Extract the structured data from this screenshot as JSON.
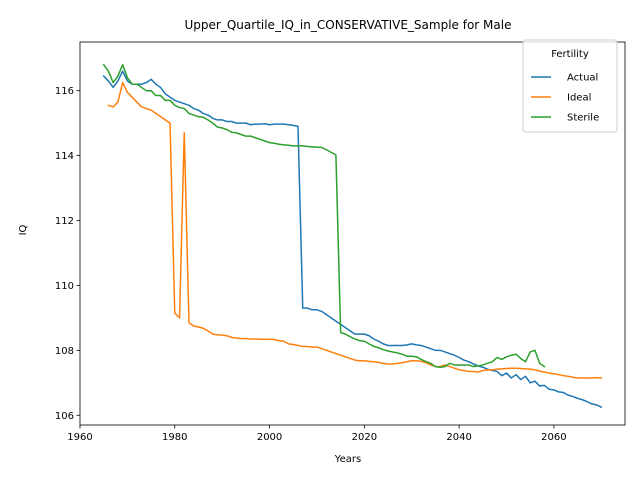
{
  "chart_data": {
    "type": "line",
    "title": "Upper_Quartile_IQ_in_CONSERVATIVE_Sample for Male",
    "xlabel": "Years",
    "ylabel": "IQ",
    "xlim": [
      1960,
      2075
    ],
    "ylim": [
      105.7,
      117.5
    ],
    "xticks": [
      1960,
      1980,
      2000,
      2020,
      2040,
      2060
    ],
    "yticks": [
      106,
      108,
      110,
      112,
      114,
      116
    ],
    "grid": false,
    "legend": {
      "title": "Fertility",
      "placement": "top-right"
    },
    "series": [
      {
        "name": "Actual",
        "color": "#1f77b4",
        "points": [
          [
            1965,
            116.45
          ],
          [
            1966,
            116.3
          ],
          [
            1967,
            116.1
          ],
          [
            1968,
            116.3
          ],
          [
            1969,
            116.6
          ],
          [
            1970,
            116.3
          ],
          [
            1971,
            116.2
          ],
          [
            1972,
            116.2
          ],
          [
            1973,
            116.2
          ],
          [
            1974,
            116.25
          ],
          [
            1975,
            116.35
          ],
          [
            1976,
            116.2
          ],
          [
            1977,
            116.1
          ],
          [
            1978,
            115.9
          ],
          [
            1979,
            115.8
          ],
          [
            1980,
            115.7
          ],
          [
            1981,
            115.65
          ],
          [
            1982,
            115.6
          ],
          [
            1983,
            115.55
          ],
          [
            1984,
            115.45
          ],
          [
            1985,
            115.4
          ],
          [
            1986,
            115.3
          ],
          [
            1987,
            115.25
          ],
          [
            1988,
            115.15
          ],
          [
            1989,
            115.1
          ],
          [
            1990,
            115.1
          ],
          [
            1991,
            115.05
          ],
          [
            1992,
            115.05
          ],
          [
            1993,
            115.0
          ],
          [
            1994,
            115.0
          ],
          [
            1995,
            115.0
          ],
          [
            1996,
            114.95
          ],
          [
            1997,
            114.97
          ],
          [
            1998,
            114.97
          ],
          [
            1999,
            114.98
          ],
          [
            2000,
            114.95
          ],
          [
            2001,
            114.97
          ],
          [
            2002,
            114.97
          ],
          [
            2003,
            114.97
          ],
          [
            2004,
            114.95
          ],
          [
            2005,
            114.93
          ],
          [
            2006,
            114.9
          ],
          [
            2007,
            109.3
          ],
          [
            2008,
            109.3
          ],
          [
            2009,
            109.25
          ],
          [
            2010,
            109.25
          ],
          [
            2011,
            109.2
          ],
          [
            2012,
            109.1
          ],
          [
            2013,
            109.0
          ],
          [
            2014,
            108.9
          ],
          [
            2015,
            108.8
          ],
          [
            2016,
            108.7
          ],
          [
            2017,
            108.6
          ],
          [
            2018,
            108.5
          ],
          [
            2019,
            108.5
          ],
          [
            2020,
            108.5
          ],
          [
            2021,
            108.45
          ],
          [
            2022,
            108.35
          ],
          [
            2023,
            108.28
          ],
          [
            2024,
            108.2
          ],
          [
            2025,
            108.15
          ],
          [
            2026,
            108.15
          ],
          [
            2027,
            108.15
          ],
          [
            2028,
            108.15
          ],
          [
            2029,
            108.17
          ],
          [
            2030,
            108.2
          ],
          [
            2031,
            108.17
          ],
          [
            2032,
            108.15
          ],
          [
            2033,
            108.1
          ],
          [
            2034,
            108.05
          ],
          [
            2035,
            108.0
          ],
          [
            2036,
            108.0
          ],
          [
            2037,
            107.95
          ],
          [
            2038,
            107.9
          ],
          [
            2039,
            107.85
          ],
          [
            2040,
            107.78
          ],
          [
            2041,
            107.7
          ],
          [
            2042,
            107.65
          ],
          [
            2043,
            107.58
          ],
          [
            2044,
            107.52
          ],
          [
            2045,
            107.48
          ],
          [
            2046,
            107.42
          ],
          [
            2047,
            107.38
          ],
          [
            2048,
            107.35
          ],
          [
            2049,
            107.22
          ],
          [
            2050,
            107.3
          ],
          [
            2051,
            107.15
          ],
          [
            2052,
            107.25
          ],
          [
            2053,
            107.1
          ],
          [
            2054,
            107.2
          ],
          [
            2055,
            107.0
          ],
          [
            2056,
            107.05
          ],
          [
            2057,
            106.9
          ],
          [
            2058,
            106.92
          ],
          [
            2059,
            106.8
          ],
          [
            2060,
            106.78
          ],
          [
            2061,
            106.72
          ],
          [
            2062,
            106.7
          ],
          [
            2063,
            106.62
          ],
          [
            2064,
            106.58
          ],
          [
            2065,
            106.52
          ],
          [
            2066,
            106.48
          ],
          [
            2067,
            106.42
          ],
          [
            2068,
            106.35
          ],
          [
            2069,
            106.32
          ],
          [
            2070,
            106.25
          ]
        ]
      },
      {
        "name": "Ideal",
        "color": "#ff7f0e",
        "points": [
          [
            1966,
            115.55
          ],
          [
            1967,
            115.5
          ],
          [
            1968,
            115.65
          ],
          [
            1969,
            116.25
          ],
          [
            1970,
            115.95
          ],
          [
            1971,
            115.8
          ],
          [
            1972,
            115.65
          ],
          [
            1973,
            115.5
          ],
          [
            1974,
            115.45
          ],
          [
            1975,
            115.4
          ],
          [
            1976,
            115.3
          ],
          [
            1977,
            115.2
          ],
          [
            1978,
            115.1
          ],
          [
            1979,
            115.0
          ],
          [
            1980,
            109.15
          ],
          [
            1981,
            109.0
          ],
          [
            1982,
            114.7
          ],
          [
            1983,
            108.85
          ],
          [
            1984,
            108.75
          ],
          [
            1985,
            108.72
          ],
          [
            1986,
            108.68
          ],
          [
            1987,
            108.6
          ],
          [
            1988,
            108.5
          ],
          [
            1989,
            108.48
          ],
          [
            1990,
            108.47
          ],
          [
            1991,
            108.45
          ],
          [
            1992,
            108.4
          ],
          [
            1993,
            108.38
          ],
          [
            1994,
            108.36
          ],
          [
            1995,
            108.36
          ],
          [
            1996,
            108.35
          ],
          [
            1997,
            108.35
          ],
          [
            1998,
            108.34
          ],
          [
            1999,
            108.34
          ],
          [
            2000,
            108.34
          ],
          [
            2001,
            108.33
          ],
          [
            2002,
            108.3
          ],
          [
            2003,
            108.28
          ],
          [
            2004,
            108.2
          ],
          [
            2005,
            108.18
          ],
          [
            2006,
            108.15
          ],
          [
            2007,
            108.12
          ],
          [
            2008,
            108.12
          ],
          [
            2009,
            108.1
          ],
          [
            2010,
            108.1
          ],
          [
            2011,
            108.05
          ],
          [
            2012,
            108.0
          ],
          [
            2013,
            107.95
          ],
          [
            2014,
            107.9
          ],
          [
            2015,
            107.85
          ],
          [
            2016,
            107.8
          ],
          [
            2017,
            107.75
          ],
          [
            2018,
            107.7
          ],
          [
            2019,
            107.68
          ],
          [
            2020,
            107.68
          ],
          [
            2021,
            107.66
          ],
          [
            2022,
            107.65
          ],
          [
            2023,
            107.63
          ],
          [
            2024,
            107.6
          ],
          [
            2025,
            107.58
          ],
          [
            2026,
            107.58
          ],
          [
            2027,
            107.6
          ],
          [
            2028,
            107.62
          ],
          [
            2029,
            107.65
          ],
          [
            2030,
            107.68
          ],
          [
            2031,
            107.68
          ],
          [
            2032,
            107.66
          ],
          [
            2033,
            107.62
          ],
          [
            2034,
            107.55
          ],
          [
            2035,
            107.5
          ],
          [
            2036,
            107.5
          ],
          [
            2037,
            107.55
          ],
          [
            2038,
            107.5
          ],
          [
            2039,
            107.45
          ],
          [
            2040,
            107.4
          ],
          [
            2041,
            107.38
          ],
          [
            2042,
            107.35
          ],
          [
            2043,
            107.35
          ],
          [
            2044,
            107.33
          ],
          [
            2045,
            107.38
          ],
          [
            2046,
            107.4
          ],
          [
            2047,
            107.4
          ],
          [
            2048,
            107.42
          ],
          [
            2049,
            107.43
          ],
          [
            2050,
            107.44
          ],
          [
            2051,
            107.45
          ],
          [
            2052,
            107.45
          ],
          [
            2053,
            107.44
          ],
          [
            2054,
            107.43
          ],
          [
            2055,
            107.42
          ],
          [
            2056,
            107.4
          ],
          [
            2057,
            107.36
          ],
          [
            2058,
            107.33
          ],
          [
            2059,
            107.3
          ],
          [
            2060,
            107.28
          ],
          [
            2061,
            107.25
          ],
          [
            2062,
            107.22
          ],
          [
            2063,
            107.2
          ],
          [
            2064,
            107.17
          ],
          [
            2065,
            107.15
          ],
          [
            2066,
            107.15
          ],
          [
            2067,
            107.15
          ],
          [
            2068,
            107.15
          ],
          [
            2069,
            107.16
          ],
          [
            2070,
            107.15
          ]
        ]
      },
      {
        "name": "Sterile",
        "color": "#2ca02c",
        "points": [
          [
            1965,
            116.8
          ],
          [
            1966,
            116.6
          ],
          [
            1967,
            116.25
          ],
          [
            1968,
            116.45
          ],
          [
            1969,
            116.8
          ],
          [
            1970,
            116.4
          ],
          [
            1971,
            116.2
          ],
          [
            1972,
            116.2
          ],
          [
            1973,
            116.1
          ],
          [
            1974,
            116.0
          ],
          [
            1975,
            116.0
          ],
          [
            1976,
            115.85
          ],
          [
            1977,
            115.85
          ],
          [
            1978,
            115.7
          ],
          [
            1979,
            115.7
          ],
          [
            1980,
            115.55
          ],
          [
            1981,
            115.48
          ],
          [
            1982,
            115.45
          ],
          [
            1983,
            115.3
          ],
          [
            1984,
            115.25
          ],
          [
            1985,
            115.2
          ],
          [
            1986,
            115.18
          ],
          [
            1987,
            115.1
          ],
          [
            1988,
            115.0
          ],
          [
            1989,
            114.88
          ],
          [
            1990,
            114.85
          ],
          [
            1991,
            114.8
          ],
          [
            1992,
            114.72
          ],
          [
            1993,
            114.7
          ],
          [
            1994,
            114.65
          ],
          [
            1995,
            114.6
          ],
          [
            1996,
            114.6
          ],
          [
            1997,
            114.55
          ],
          [
            1998,
            114.5
          ],
          [
            1999,
            114.45
          ],
          [
            2000,
            114.4
          ],
          [
            2001,
            114.38
          ],
          [
            2002,
            114.35
          ],
          [
            2003,
            114.33
          ],
          [
            2004,
            114.32
          ],
          [
            2005,
            114.3
          ],
          [
            2006,
            114.3
          ],
          [
            2007,
            114.3
          ],
          [
            2008,
            114.28
          ],
          [
            2009,
            114.27
          ],
          [
            2010,
            114.26
          ],
          [
            2011,
            114.25
          ],
          [
            2012,
            114.18
          ],
          [
            2013,
            114.1
          ],
          [
            2014,
            114.02
          ],
          [
            2015,
            108.55
          ],
          [
            2016,
            108.5
          ],
          [
            2017,
            108.42
          ],
          [
            2018,
            108.35
          ],
          [
            2019,
            108.3
          ],
          [
            2020,
            108.28
          ],
          [
            2021,
            108.2
          ],
          [
            2022,
            108.12
          ],
          [
            2023,
            108.08
          ],
          [
            2024,
            108.02
          ],
          [
            2025,
            107.98
          ],
          [
            2026,
            107.95
          ],
          [
            2027,
            107.92
          ],
          [
            2028,
            107.88
          ],
          [
            2029,
            107.82
          ],
          [
            2030,
            107.82
          ],
          [
            2031,
            107.8
          ],
          [
            2032,
            107.72
          ],
          [
            2033,
            107.65
          ],
          [
            2034,
            107.6
          ],
          [
            2035,
            107.5
          ],
          [
            2036,
            107.48
          ],
          [
            2037,
            107.5
          ],
          [
            2038,
            107.6
          ],
          [
            2039,
            107.55
          ],
          [
            2040,
            107.55
          ],
          [
            2041,
            107.55
          ],
          [
            2042,
            107.55
          ],
          [
            2043,
            107.5
          ],
          [
            2044,
            107.52
          ],
          [
            2045,
            107.55
          ],
          [
            2046,
            107.6
          ],
          [
            2047,
            107.65
          ],
          [
            2048,
            107.78
          ],
          [
            2049,
            107.72
          ],
          [
            2050,
            107.8
          ],
          [
            2051,
            107.85
          ],
          [
            2052,
            107.88
          ],
          [
            2053,
            107.75
          ],
          [
            2054,
            107.65
          ],
          [
            2055,
            107.95
          ],
          [
            2056,
            108.0
          ],
          [
            2057,
            107.6
          ],
          [
            2058,
            107.5
          ]
        ]
      }
    ]
  }
}
